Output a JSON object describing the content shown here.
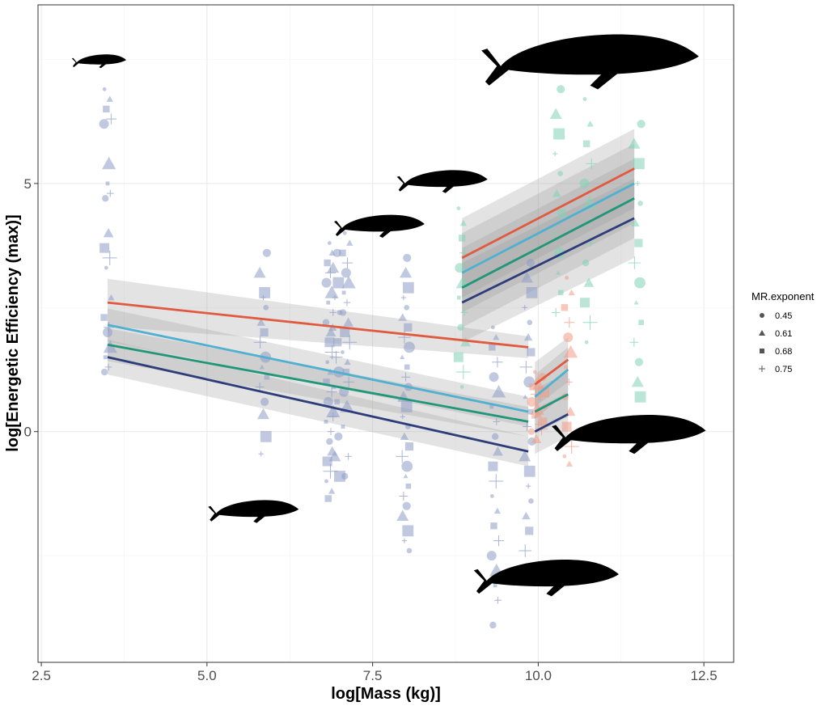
{
  "chart_data": {
    "type": "scatter",
    "xlabel": "log[Mass (kg)]",
    "ylabel": "log[Energetic Efficiency (max)]",
    "xlim": [
      2.45,
      12.95
    ],
    "ylim": [
      -4.65,
      8.6
    ],
    "x_ticks": [
      2.5,
      5.0,
      7.5,
      10.0,
      12.5
    ],
    "x_tick_labels": [
      "2.5",
      "5.0",
      "7.5",
      "10.0",
      "12.5"
    ],
    "y_ticks": [
      0,
      5
    ],
    "y_tick_labels": [
      "0",
      "5"
    ],
    "grid": true,
    "legend": {
      "title": "MR.exponent",
      "position": "right",
      "entries": [
        {
          "label": "0.45",
          "shape": "circle"
        },
        {
          "label": "0.61",
          "shape": "triangle"
        },
        {
          "label": "0.68",
          "shape": "square"
        },
        {
          "label": "0.75",
          "shape": "plus"
        }
      ]
    },
    "group_colors": {
      "odontocete": "#8e9cc7",
      "balaenopterid": "#7fd1b5",
      "balaenid": "#f39a85"
    },
    "line_colors": {
      "0.45": "#e05a3f",
      "0.61": "#4fb0d0",
      "0.68": "#20967a",
      "0.75": "#2c3d7a"
    },
    "points": [
      {
        "group": "odontocete",
        "x": 3.5,
        "values": [
          6.9,
          6.7,
          6.5,
          6.3,
          6.2,
          5.4,
          5.0,
          4.8,
          4.7,
          4.0,
          3.7,
          3.5,
          3.3,
          2.7,
          2.3,
          2.1,
          2.0,
          1.7,
          1.5,
          1.3,
          1.2
        ]
      },
      {
        "group": "odontocete",
        "x": 5.85,
        "values": [
          3.6,
          3.2,
          2.8,
          2.7,
          2.5,
          2.2,
          2.0,
          1.8,
          1.5,
          1.3,
          1.1,
          0.9,
          0.6,
          0.35,
          -0.1,
          -0.45
        ]
      },
      {
        "group": "odontocete",
        "x": 6.85,
        "values": [
          3.8,
          3.6,
          3.4,
          3.2,
          3.0,
          2.8,
          2.6,
          2.4,
          2.2,
          2.0,
          1.8,
          1.6,
          1.4,
          1.2,
          1.0,
          0.8,
          0.6,
          0.4,
          0.2,
          0.0,
          -0.2,
          -0.4,
          -0.6,
          -0.8,
          -1.0,
          -1.2,
          -1.35
        ]
      },
      {
        "group": "odontocete",
        "x": 6.95,
        "values": [
          3.6,
          3.3,
          3.0,
          2.7,
          2.4,
          2.1,
          1.8,
          1.5,
          1.2,
          0.9,
          0.6,
          0.3,
          -0.1,
          -0.5,
          -0.9
        ]
      },
      {
        "group": "odontocete",
        "x": 7.1,
        "values": [
          4.0,
          3.8,
          3.6,
          3.4,
          3.2,
          3.0,
          2.8,
          2.6,
          2.4,
          2.2,
          2.0,
          1.8,
          1.6,
          1.4,
          1.2,
          1.0,
          0.8,
          0.5,
          0.1,
          -0.5,
          -0.9
        ]
      },
      {
        "group": "odontocete",
        "x": 8.0,
        "values": [
          3.5,
          3.2,
          2.9,
          2.7,
          2.5,
          2.3,
          2.1,
          1.9,
          1.7,
          1.5,
          1.3,
          1.1,
          0.9,
          0.7,
          0.5,
          0.3,
          0.1,
          -0.1,
          -0.3,
          -0.5,
          -0.7,
          -0.9,
          -1.1,
          -1.3,
          -1.5,
          -1.7,
          -2.0,
          -2.2,
          -2.4
        ]
      },
      {
        "group": "odontocete",
        "x": 9.35,
        "values": [
          2.1,
          1.9,
          1.7,
          1.4,
          1.1,
          0.8,
          0.5,
          0.2,
          -0.1,
          -0.4,
          -0.7,
          -1.0,
          -1.3,
          -1.6,
          -1.9,
          -2.2,
          -2.5,
          -2.8,
          -3.1,
          -3.4,
          -3.9
        ]
      },
      {
        "group": "odontocete",
        "x": 9.85,
        "values": [
          3.4,
          3.1,
          2.8,
          2.5,
          2.2,
          1.9,
          1.6,
          1.3,
          1.0,
          0.7,
          0.4,
          0.1,
          -0.2,
          -0.5,
          -0.8,
          -1.1,
          -1.4,
          -1.7,
          -2.0,
          -2.4
        ]
      },
      {
        "group": "balaenopterid",
        "x": 8.85,
        "values": [
          4.5,
          4.2,
          3.9,
          3.6,
          3.3,
          3.0,
          2.7,
          2.4,
          2.1,
          1.8,
          1.5,
          1.2,
          0.9
        ]
      },
      {
        "group": "balaenopterid",
        "x": 10.3,
        "values": [
          6.9,
          6.4,
          6.0,
          5.6,
          5.2,
          4.8,
          4.4,
          4.0,
          3.6,
          3.2,
          2.8,
          2.4
        ]
      },
      {
        "group": "balaenopterid",
        "x": 10.75,
        "values": [
          6.7,
          6.2,
          5.8,
          5.4,
          5.0,
          4.6,
          4.2,
          3.8,
          3.4,
          3.0,
          2.6,
          2.2,
          1.8
        ]
      },
      {
        "group": "balaenopterid",
        "x": 11.5,
        "values": [
          6.2,
          5.8,
          5.4,
          5.0,
          4.6,
          4.2,
          3.8,
          3.4,
          3.0,
          2.6,
          2.2,
          1.8,
          1.4,
          1.0,
          0.7
        ]
      },
      {
        "group": "balaenid",
        "x": 9.95,
        "values": [
          1.2,
          1.05,
          0.9,
          0.75,
          0.6,
          0.45,
          0.3,
          0.15,
          0.0,
          -0.15
        ]
      },
      {
        "group": "balaenid",
        "x": 10.05,
        "values": [
          1.1,
          0.95,
          0.8,
          0.65,
          0.5,
          0.35,
          0.2,
          0.05
        ]
      },
      {
        "group": "balaenid",
        "x": 10.45,
        "values": [
          3.1,
          2.8,
          2.5,
          2.2,
          1.9,
          1.6,
          1.3,
          1.0,
          0.7,
          0.4,
          0.1,
          -0.3,
          -0.5,
          -0.65
        ]
      }
    ],
    "series": [
      {
        "name": "0.45",
        "segment": "odontocete",
        "x": [
          3.5,
          9.85
        ],
        "y": [
          2.6,
          1.7
        ],
        "band": [
          [
            3.08,
            2.12
          ],
          [
            1.92,
            1.48
          ]
        ]
      },
      {
        "name": "0.61",
        "segment": "odontocete",
        "x": [
          3.5,
          9.85
        ],
        "y": [
          2.15,
          0.4
        ],
        "band": [
          [
            2.48,
            1.82
          ],
          [
            0.7,
            0.1
          ]
        ]
      },
      {
        "name": "0.68",
        "segment": "odontocete",
        "x": [
          3.5,
          9.85
        ],
        "y": [
          1.75,
          0.2
        ],
        "band": [
          [
            2.08,
            1.42
          ],
          [
            0.5,
            -0.1
          ]
        ]
      },
      {
        "name": "0.75",
        "segment": "odontocete",
        "x": [
          3.5,
          9.85
        ],
        "y": [
          1.5,
          -0.4
        ],
        "band": [
          [
            1.85,
            1.15
          ],
          [
            -0.1,
            -0.7
          ]
        ]
      },
      {
        "name": "0.45",
        "segment": "balaenid",
        "x": [
          9.95,
          10.45
        ],
        "y": [
          0.95,
          1.45
        ],
        "band": [
          [
            1.4,
            0.5
          ],
          [
            1.9,
            1.0
          ]
        ]
      },
      {
        "name": "0.61",
        "segment": "balaenid",
        "x": [
          9.95,
          10.45
        ],
        "y": [
          0.7,
          1.25
        ],
        "band": [
          [
            1.15,
            0.25
          ],
          [
            1.7,
            0.8
          ]
        ]
      },
      {
        "name": "0.68",
        "segment": "balaenid",
        "x": [
          9.95,
          10.45
        ],
        "y": [
          0.4,
          0.75
        ],
        "band": [
          [
            0.85,
            -0.05
          ],
          [
            1.2,
            0.3
          ]
        ]
      },
      {
        "name": "0.75",
        "segment": "balaenid",
        "x": [
          9.95,
          10.45
        ],
        "y": [
          0.0,
          0.35
        ],
        "band": [
          [
            0.45,
            -0.45
          ],
          [
            0.8,
            -0.1
          ]
        ]
      },
      {
        "name": "0.45",
        "segment": "balaenopterid",
        "x": [
          8.85,
          11.45
        ],
        "y": [
          3.5,
          5.3
        ],
        "band": [
          [
            4.3,
            2.7
          ],
          [
            6.1,
            4.5
          ]
        ]
      },
      {
        "name": "0.61",
        "segment": "balaenopterid",
        "x": [
          8.85,
          11.45
        ],
        "y": [
          3.2,
          5.0
        ],
        "band": [
          [
            4.0,
            2.4
          ],
          [
            5.8,
            4.2
          ]
        ]
      },
      {
        "name": "0.68",
        "segment": "balaenopterid",
        "x": [
          8.85,
          11.45
        ],
        "y": [
          2.9,
          4.7
        ],
        "band": [
          [
            3.7,
            2.1
          ],
          [
            5.5,
            3.9
          ]
        ]
      },
      {
        "name": "0.75",
        "segment": "balaenopterid",
        "x": [
          8.85,
          11.45
        ],
        "y": [
          2.6,
          4.3
        ],
        "band": [
          [
            3.4,
            1.8
          ],
          [
            5.1,
            3.5
          ]
        ]
      }
    ],
    "silhouettes": [
      {
        "name": "porpoise-silhouette",
        "x": 3.4,
        "y": 7.5,
        "size": 0.6
      },
      {
        "name": "killer-whale-silhouette",
        "x": 5.75,
        "y": -1.55,
        "size": 1.0
      },
      {
        "name": "beaked-whale-silhouette",
        "x": 7.65,
        "y": 4.2,
        "size": 1.0
      },
      {
        "name": "minke-whale-silhouette",
        "x": 8.6,
        "y": 5.1,
        "size": 1.0
      },
      {
        "name": "blue-whale-silhouette",
        "x": 10.9,
        "y": 7.6,
        "size": 2.4
      },
      {
        "name": "right-whale-silhouette",
        "x": 11.45,
        "y": 0.05,
        "size": 1.7
      },
      {
        "name": "sperm-whale-silhouette",
        "x": 10.2,
        "y": -2.85,
        "size": 1.6
      }
    ]
  }
}
